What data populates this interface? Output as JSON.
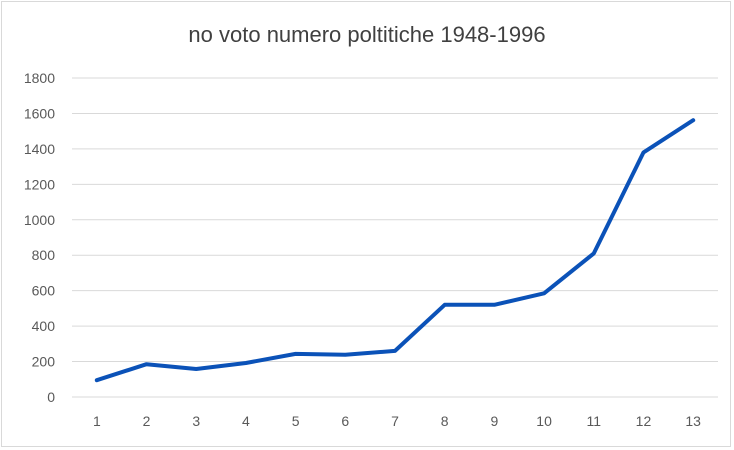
{
  "chart_data": {
    "type": "line",
    "title": "no voto numero poltitiche 1948-1996",
    "xlabel": "",
    "ylabel": "",
    "x": [
      1,
      2,
      3,
      4,
      5,
      6,
      7,
      8,
      9,
      10,
      11,
      12,
      13
    ],
    "series": [
      {
        "values": [
          95,
          185,
          158,
          192,
          243,
          238,
          260,
          520,
          520,
          585,
          810,
          1380,
          1562
        ],
        "color": "#0b52b8"
      }
    ],
    "ylim": [
      0,
      1800
    ],
    "yticks": [
      0,
      200,
      400,
      600,
      800,
      1000,
      1200,
      1400,
      1600,
      1800
    ],
    "grid": true,
    "legend": "none",
    "colors": {
      "line": "#0b52b8",
      "grid": "#d9d9d9",
      "text": "#595959",
      "title": "#404040"
    }
  }
}
